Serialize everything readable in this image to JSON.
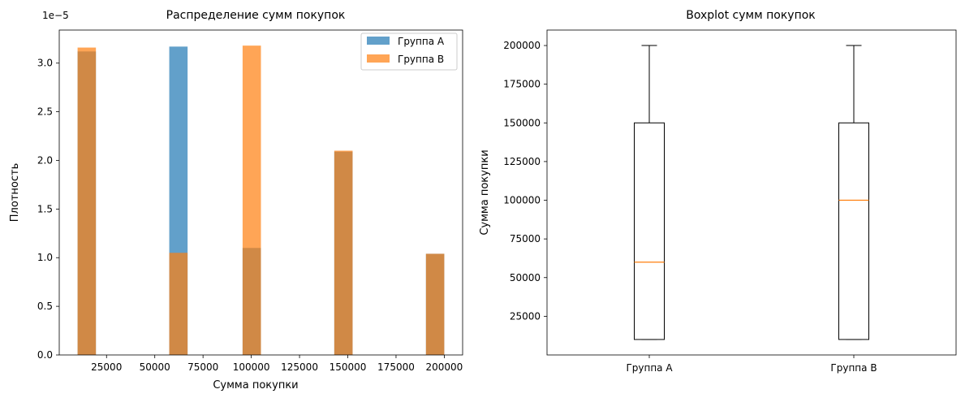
{
  "chart_data": [
    {
      "type": "histogram",
      "title": "Распределение сумм покупок",
      "xlabel": "Сумма покупки",
      "ylabel": "Плотность",
      "y_offset_label": "1e−5",
      "xlim": [
        500,
        209500
      ],
      "ylim": [
        0,
        3.34
      ],
      "xticks": [
        25000,
        50000,
        75000,
        100000,
        125000,
        150000,
        175000,
        200000
      ],
      "yticks": [
        0.0,
        0.5,
        1.0,
        1.5,
        2.0,
        2.5,
        3.0
      ],
      "legend_position": "top-right",
      "bins": [
        {
          "x0": 10000,
          "x1": 19500
        },
        {
          "x0": 57500,
          "x1": 67000
        },
        {
          "x0": 95500,
          "x1": 105000
        },
        {
          "x0": 143000,
          "x1": 152500
        },
        {
          "x0": 190500,
          "x1": 200000
        }
      ],
      "series": [
        {
          "name": "Группа A",
          "color": "#1f77b4",
          "opacity": 0.7,
          "values": [
            3.12,
            3.17,
            1.1,
            2.09,
            1.04
          ]
        },
        {
          "name": "Группа B",
          "color": "#ff7f0e",
          "opacity": 0.7,
          "values": [
            3.16,
            1.05,
            3.18,
            2.1,
            1.04
          ]
        }
      ]
    },
    {
      "type": "boxplot",
      "title": "Boxplot сумм покупок",
      "ylabel": "Сумма покупки",
      "ylim": [
        0,
        210000
      ],
      "yticks": [
        25000,
        50000,
        75000,
        100000,
        125000,
        150000,
        175000,
        200000
      ],
      "categories": [
        "Группа A",
        "Группа B"
      ],
      "median_color": "#ff7f0e",
      "boxes": [
        {
          "name": "Группа A",
          "whisker_low": 10000,
          "q1": 10000,
          "median": 60000,
          "q3": 150000,
          "whisker_high": 200000
        },
        {
          "name": "Группа B",
          "whisker_low": 10000,
          "q1": 10000,
          "median": 100000,
          "q3": 150000,
          "whisker_high": 200000
        }
      ]
    }
  ]
}
